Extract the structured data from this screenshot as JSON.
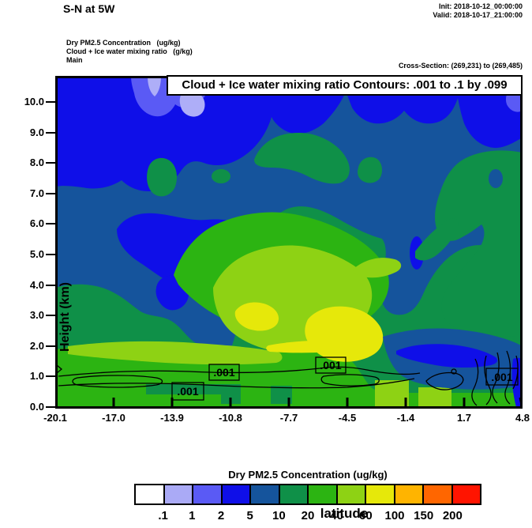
{
  "header": {
    "title": "S-N at 5W",
    "init_line": "Init: 2018-10-12_00:00:00",
    "valid_line": "Valid: 2018-10-17_21:00:00",
    "field_lines": [
      "Dry PM2.5 Concentration   (ug/kg)",
      "Cloud + Ice water mixing ratio   (g/kg)",
      "Main"
    ],
    "cross_section": "Cross-Section: (269,231) to (269,485)"
  },
  "plot": {
    "banner": "Cloud + Ice water mixing ratio Contours: .001 to .1 by .099",
    "ylabel": "Height (km)",
    "xlabel": "latitude",
    "yticks": [
      "10.0",
      "9.0",
      "8.0",
      "7.0",
      "6.0",
      "5.0",
      "4.0",
      "3.0",
      "2.0",
      "1.0",
      "0.0"
    ],
    "xticks": [
      "-20.1",
      "-17.0",
      "-13.9",
      "-10.8",
      "-7.7",
      "-4.5",
      "-1.4",
      "1.7",
      "4.8"
    ],
    "contour_labels": [
      ".001",
      ".001",
      ".001",
      ".001"
    ]
  },
  "colorbar": {
    "title": "Dry PM2.5 Concentration  (ug/kg)",
    "colors": [
      "#ffffff",
      "#aaaaf6",
      "#5a5af5",
      "#0f0fe8",
      "#15549c",
      "#0f9048",
      "#2cb412",
      "#8ed214",
      "#e6e80a",
      "#ffb400",
      "#ff6600",
      "#ff1400"
    ],
    "labels": [
      ".1",
      "1",
      "2",
      "5",
      "10",
      "20",
      "40",
      "60",
      "100",
      "150",
      "200"
    ]
  },
  "chart_data": {
    "type": "heatmap",
    "subtype": "filled-contour vertical cross-section",
    "title": "S-N at 5W",
    "init_time": "2018-10-12_00:00:00",
    "valid_time": "2018-10-17_21:00:00",
    "xlabel": "latitude",
    "ylabel": "Height (km)",
    "xticks": [
      -20.1,
      -17.0,
      -13.9,
      -10.8,
      -7.7,
      -4.5,
      -1.4,
      1.7,
      4.8
    ],
    "yticks": [
      0,
      1,
      2,
      3,
      4,
      5,
      6,
      7,
      8,
      9,
      10
    ],
    "xlim": [
      -20.1,
      4.8
    ],
    "ylim": [
      0,
      10.8
    ],
    "fill_variable": "Dry PM2.5 Concentration (ug/kg)",
    "fill_levels": [
      0.1,
      1,
      2,
      5,
      10,
      20,
      40,
      60,
      100,
      150,
      200
    ],
    "fill_colors": [
      "#ffffff",
      "#aaaaf6",
      "#5a5af5",
      "#0f0fe8",
      "#15549c",
      "#0f9048",
      "#2cb412",
      "#8ed214",
      "#e6e80a",
      "#ffb400",
      "#ff6600",
      "#ff1400"
    ],
    "overlay_variable": "Cloud + Ice water mixing ratio (g/kg)",
    "overlay_contour_spec": ".001 to .1 by .099",
    "overlay_levels": [
      0.001,
      0.1
    ],
    "overlay_labels": [
      {
        "value": ".001",
        "lat": -11.1,
        "height_km": 1.0
      },
      {
        "value": ".001",
        "lat": -5.4,
        "height_km": 1.35
      },
      {
        "value": ".001",
        "lat": -13.0,
        "height_km": 0.5
      },
      {
        "value": ".001",
        "lat": 3.7,
        "height_km": 1.0
      }
    ],
    "regions": [
      {
        "height_km": "8-10.8",
        "dominant_value_ugkg": "2-5",
        "note": "bright blue band across top; 0.1-2 ug/kg (violet/lavender) pockets near lat -13 aloft and at far right edge"
      },
      {
        "height_km": "4-8",
        "dominant_value_ugkg": "5-10",
        "note": "dark steel blue; scattered 10-20 ug/kg (dark green) blobs near lats -13, -9.5, -7.5 and widespread 10-20 right of lat -6"
      },
      {
        "height_km": "2-4",
        "dominant_value_ugkg": "10-40",
        "note": "greens; 40-60 ug/kg core lat -12 to -3; 60-100 ug/kg (yellow) cores near lat -8 and lat -6 to -3.5; 2-5 (blue) pocket near lat -12, 3.5 km"
      },
      {
        "height_km": "0-2",
        "dominant_value_ugkg": "20-40",
        "note": "40-60 band near 1.2 km from lat -20 to -8; cloud contour (.001) loops hug 0.5-1.2 km; 2-10 ug/kg (blue) pocket near 1 km from lat -2 to 4.8"
      }
    ]
  }
}
